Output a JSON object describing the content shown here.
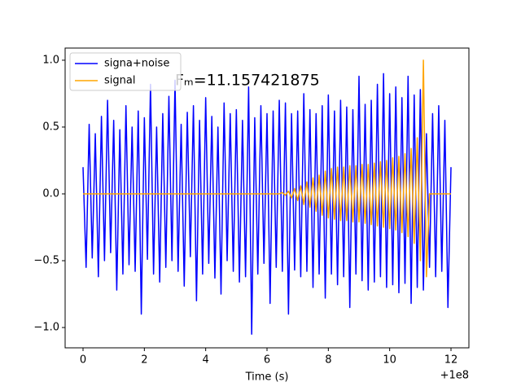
{
  "chart_data": {
    "type": "line",
    "annotation": "Fₘ=11.157421875",
    "xlabel": "Time (s)",
    "x_offset_label": "+1e8",
    "x": [
      0,
      0.1,
      0.2,
      0.3,
      0.4,
      0.5,
      0.6,
      0.7,
      0.8,
      0.9,
      1,
      1.1,
      1.2,
      1.3,
      1.4,
      1.5,
      1.6,
      1.7,
      1.8,
      1.9,
      2,
      2.1,
      2.2,
      2.3,
      2.4,
      2.5,
      2.6,
      2.7,
      2.8,
      2.9,
      3,
      3.1,
      3.2,
      3.3,
      3.4,
      3.5,
      3.6,
      3.7,
      3.8,
      3.9,
      4,
      4.1,
      4.2,
      4.3,
      4.4,
      4.5,
      4.6,
      4.7,
      4.8,
      4.9,
      5,
      5.1,
      5.2,
      5.3,
      5.4,
      5.5,
      5.6,
      5.7,
      5.8,
      5.9,
      6,
      6.1,
      6.2,
      6.3,
      6.4,
      6.5,
      6.6,
      6.7,
      6.8,
      6.9,
      7,
      7.1,
      7.2,
      7.3,
      7.4,
      7.5,
      7.6,
      7.7,
      7.8,
      7.9,
      8,
      8.1,
      8.2,
      8.3,
      8.4,
      8.5,
      8.6,
      8.7,
      8.8,
      8.9,
      9,
      9.1,
      9.2,
      9.3,
      9.4,
      9.5,
      9.6,
      9.7,
      9.8,
      9.9,
      10,
      10.1,
      10.2,
      10.3,
      10.4,
      10.5,
      10.6,
      10.7,
      10.8,
      10.9,
      11,
      11.1,
      11.2,
      11.3,
      11.4,
      11.5,
      11.6,
      11.7,
      11.8,
      11.9,
      12
    ],
    "series": [
      {
        "name": "signa+noise",
        "color": "#0000ff",
        "values": [
          0.2,
          -0.55,
          0.52,
          -0.48,
          0.45,
          -0.62,
          0.58,
          -0.5,
          0.7,
          -0.44,
          0.55,
          -0.72,
          0.48,
          -0.6,
          0.66,
          -0.53,
          0.5,
          -0.58,
          0.62,
          -0.9,
          0.57,
          -0.49,
          0.82,
          -0.6,
          0.5,
          -0.66,
          0.6,
          -0.55,
          0.73,
          -0.5,
          0.85,
          -0.58,
          0.52,
          -0.69,
          0.61,
          -0.47,
          0.66,
          -0.8,
          0.55,
          -0.6,
          0.72,
          -0.52,
          0.58,
          -0.63,
          0.5,
          -0.75,
          0.68,
          -0.5,
          0.6,
          -0.58,
          0.63,
          -0.66,
          0.55,
          -0.62,
          0.8,
          -1.05,
          0.57,
          -0.6,
          0.66,
          -0.52,
          0.6,
          -0.82,
          0.62,
          -0.55,
          0.7,
          -0.58,
          0.68,
          -0.9,
          0.6,
          -0.57,
          0.62,
          -0.62,
          0.75,
          -0.58,
          0.63,
          -0.7,
          0.6,
          -0.6,
          0.66,
          -0.78,
          0.74,
          -0.6,
          0.62,
          -0.68,
          0.7,
          -0.62,
          0.65,
          -0.85,
          0.63,
          -0.6,
          0.88,
          -0.65,
          0.67,
          -0.72,
          0.7,
          -0.66,
          0.82,
          -0.62,
          0.9,
          -0.7,
          0.75,
          -0.68,
          0.8,
          -0.74,
          0.72,
          -0.67,
          0.88,
          -0.82,
          0.74,
          -0.7,
          0.78,
          -0.72,
          0.45,
          -0.55,
          0.6,
          -0.62,
          0.66,
          -0.58,
          0.55,
          -0.85,
          0.2
        ]
      },
      {
        "name": "signal",
        "color": "#ffa500",
        "values": [
          0,
          0,
          0,
          0,
          0,
          0,
          0,
          0,
          0,
          0,
          0,
          0,
          0,
          0,
          0,
          0,
          0,
          0,
          0,
          0,
          0,
          0,
          0,
          0,
          0,
          0,
          0,
          0,
          0,
          0,
          0,
          0,
          0,
          0,
          0,
          0,
          0,
          0,
          0,
          0,
          0,
          0,
          0,
          0,
          0,
          0,
          0,
          0,
          0,
          0,
          0,
          0,
          0,
          0,
          0,
          0,
          0,
          0,
          0,
          0,
          0,
          0,
          0,
          0,
          0,
          0.01,
          -0.01,
          0.02,
          -0.03,
          0.04,
          -0.05,
          0.06,
          -0.08,
          0.09,
          -0.1,
          0.12,
          -0.13,
          0.14,
          -0.16,
          0.17,
          -0.18,
          0.19,
          -0.19,
          0.2,
          -0.2,
          0.2,
          -0.2,
          0.21,
          -0.21,
          0.21,
          -0.21,
          0.22,
          -0.22,
          0.22,
          -0.23,
          0.23,
          -0.24,
          0.24,
          -0.25,
          0.25,
          -0.26,
          0.27,
          -0.27,
          0.28,
          -0.29,
          0.3,
          -0.32,
          0.34,
          -0.37,
          0.42,
          -0.5,
          1.0,
          -0.62,
          0,
          0,
          0,
          0,
          0,
          0,
          0,
          0
        ]
      }
    ],
    "xlim": [
      -0.584,
      12.584
    ],
    "xticks": [
      0,
      2,
      4,
      6,
      8,
      10,
      12
    ],
    "ylim": [
      -1.152,
      1.091
    ],
    "yticks": [
      {
        "value": -1,
        "label": "−1.0"
      },
      {
        "value": -0.5,
        "label": "−0.5"
      },
      {
        "value": 0,
        "label": "0.0"
      },
      {
        "value": 0.5,
        "label": "0.5"
      },
      {
        "value": 1,
        "label": "1.0"
      }
    ],
    "legend": "upper left"
  }
}
